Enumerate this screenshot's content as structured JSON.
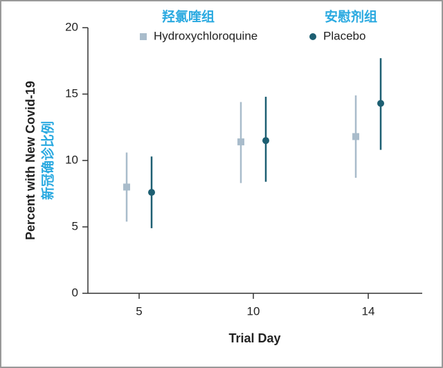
{
  "chart_data": {
    "type": "errorbar",
    "ylabel": "Percent with New Covid-19",
    "ylabel_cn": "新冠确诊比例",
    "xlabel": "Trial Day",
    "categories": [
      "5",
      "10",
      "14"
    ],
    "series": [
      {
        "name": "Hydroxychloroquine",
        "name_cn": "羟氯喹组",
        "color": "#a9bccb",
        "marker": "square",
        "values": [
          8.0,
          11.4,
          11.8
        ],
        "ci_low": [
          5.4,
          8.3,
          8.7
        ],
        "ci_high": [
          10.6,
          14.4,
          14.9
        ]
      },
      {
        "name": "Placebo",
        "name_cn": "安慰剂组",
        "color": "#1d5f72",
        "marker": "circle",
        "values": [
          7.6,
          11.5,
          14.3
        ],
        "ci_low": [
          4.9,
          8.4,
          10.8
        ],
        "ci_high": [
          10.3,
          14.8,
          17.7
        ]
      }
    ],
    "ylim": [
      0,
      20
    ],
    "yticks": [
      0,
      5,
      10,
      15,
      20
    ]
  }
}
